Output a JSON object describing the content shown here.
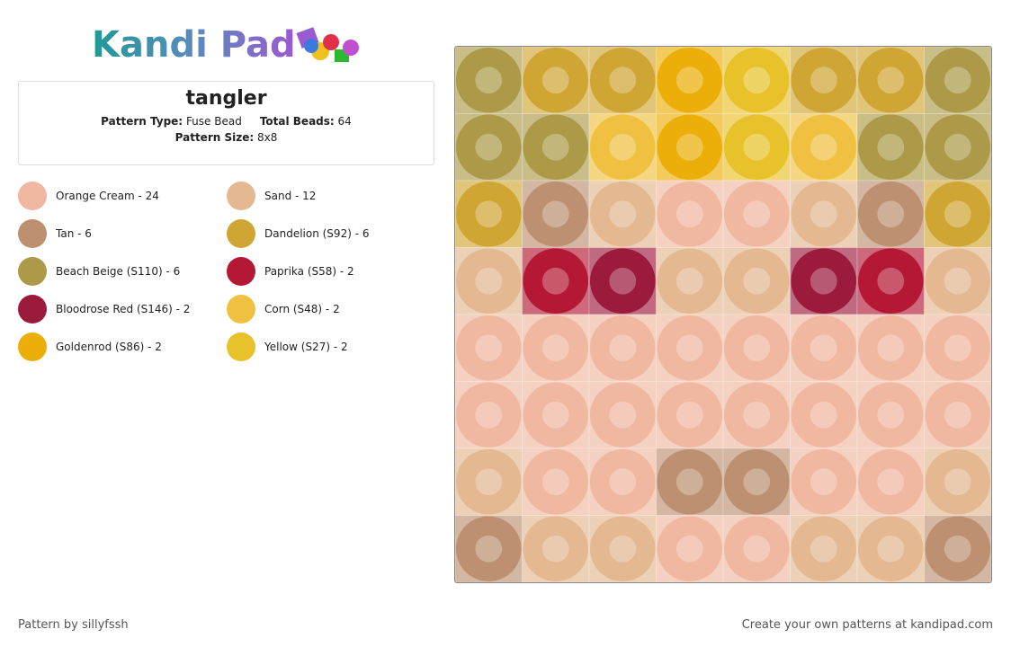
{
  "header": {
    "logo": "Kandi Pad"
  },
  "info": {
    "title": "tangler",
    "type_label": "Pattern Type:",
    "type_value": "Fuse Bead",
    "total_label": "Total Beads:",
    "total_value": "64",
    "size_label": "Pattern Size:",
    "size_value": "8x8"
  },
  "legend": [
    {
      "text": "Orange Cream - 24",
      "color": "#f0b8a0"
    },
    {
      "text": "Sand - 12",
      "color": "#e4b890"
    },
    {
      "text": "Tan - 6",
      "color": "#bc9070"
    },
    {
      "text": "Dandelion (S92) - 6",
      "color": "#cfa634"
    },
    {
      "text": "Beach Beige (S110) - 6",
      "color": "#ac9a48"
    },
    {
      "text": "Paprika (S58) - 2",
      "color": "#b41834"
    },
    {
      "text": "Bloodrose Red (S146) - 2",
      "color": "#9c1a3c"
    },
    {
      "text": "Corn (S48) - 2",
      "color": "#f0c040"
    },
    {
      "text": "Goldenrod (S86) - 2",
      "color": "#ecae08"
    },
    {
      "text": "Yellow (S27) - 2",
      "color": "#e8c22a"
    }
  ],
  "grid": [
    [
      "#ac9a48",
      "#cfa634",
      "#cfa634",
      "#ecae08",
      "#e8c22a",
      "#cfa634",
      "#cfa634",
      "#ac9a48"
    ],
    [
      "#ac9a48",
      "#ac9a48",
      "#f0c040",
      "#ecae08",
      "#e8c22a",
      "#f0c040",
      "#ac9a48",
      "#ac9a48"
    ],
    [
      "#cfa634",
      "#bc9070",
      "#e4b890",
      "#f0b8a0",
      "#f0b8a0",
      "#e4b890",
      "#bc9070",
      "#cfa634"
    ],
    [
      "#e4b890",
      "#b41834",
      "#9c1a3c",
      "#e4b890",
      "#e4b890",
      "#9c1a3c",
      "#b41834",
      "#e4b890"
    ],
    [
      "#f0b8a0",
      "#f0b8a0",
      "#f0b8a0",
      "#f0b8a0",
      "#f0b8a0",
      "#f0b8a0",
      "#f0b8a0",
      "#f0b8a0"
    ],
    [
      "#f0b8a0",
      "#f0b8a0",
      "#f0b8a0",
      "#f0b8a0",
      "#f0b8a0",
      "#f0b8a0",
      "#f0b8a0",
      "#f0b8a0"
    ],
    [
      "#e4b890",
      "#f0b8a0",
      "#f0b8a0",
      "#bc9070",
      "#bc9070",
      "#f0b8a0",
      "#f0b8a0",
      "#e4b890"
    ],
    [
      "#bc9070",
      "#e4b890",
      "#e4b890",
      "#f0b8a0",
      "#f0b8a0",
      "#e4b890",
      "#e4b890",
      "#bc9070"
    ]
  ],
  "footer": {
    "left": "Pattern by sillyfssh",
    "right": "Create your own patterns at kandipad.com"
  }
}
